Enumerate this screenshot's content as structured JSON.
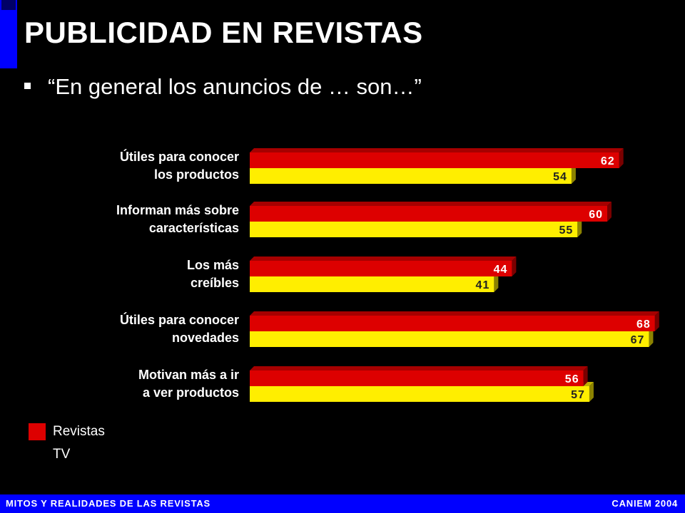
{
  "slide": {
    "title": "PUBLICIDAD EN REVISTAS",
    "subtitle": "“En general los anuncios de … son…”"
  },
  "footer": {
    "left": "MITOS Y REALIDADES DE LAS REVISTAS",
    "right": "CANIEM 2004"
  },
  "colors": {
    "revistas": "#dd0000",
    "tv": "#ffee00",
    "background": "#000000",
    "accent": "#0000ff"
  },
  "chart_data": {
    "type": "bar",
    "orientation": "horizontal",
    "categories": [
      [
        "Útiles para conocer",
        "los productos"
      ],
      [
        "Informan más sobre",
        "características"
      ],
      [
        "Los más",
        "creíbles"
      ],
      [
        "Útiles para conocer",
        "novedades"
      ],
      [
        "Motivan más a ir",
        "a ver productos"
      ]
    ],
    "series": [
      {
        "name": "Revistas",
        "values": [
          62,
          60,
          44,
          68,
          56
        ]
      },
      {
        "name": "TV",
        "values": [
          54,
          55,
          41,
          67,
          57
        ]
      }
    ],
    "legend": "bottom-left",
    "grid": false
  }
}
